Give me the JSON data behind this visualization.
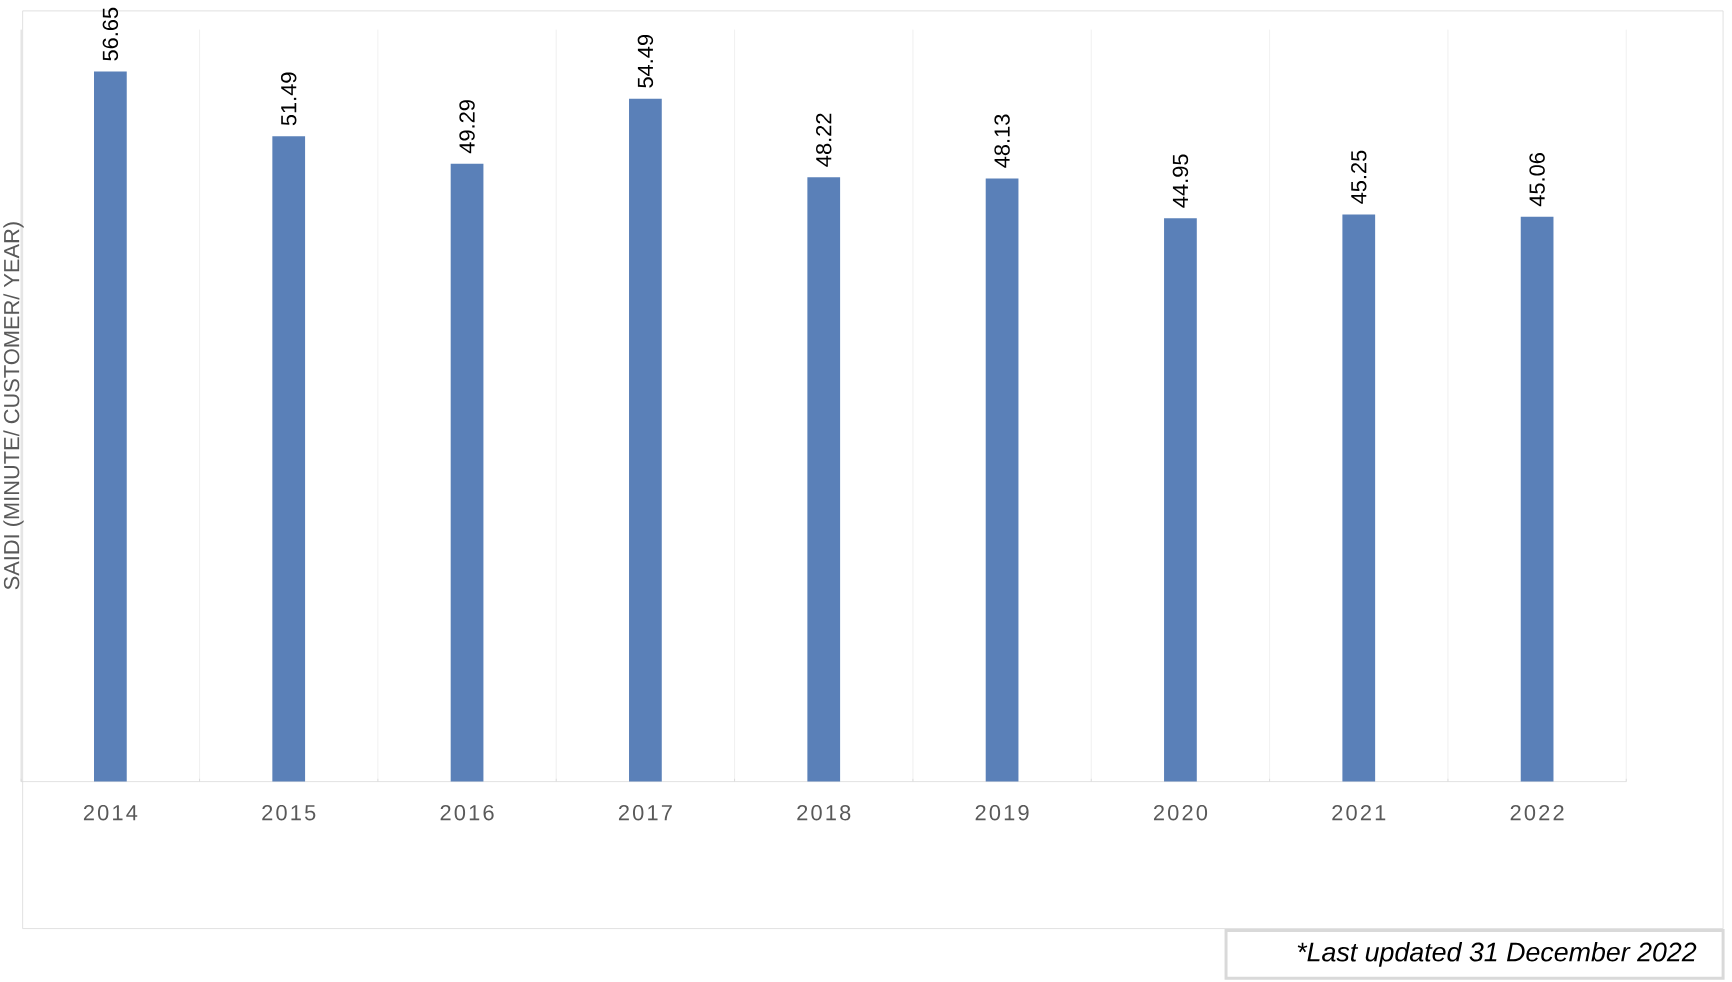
{
  "chart_data": {
    "type": "bar",
    "ylabel": "SAIDI (MINUTE/ CUSTOMER/ YEAR)",
    "categories": [
      "2014",
      "2015",
      "2016",
      "2017",
      "2018",
      "2019",
      "2020",
      "2021",
      "2022"
    ],
    "values": [
      56.65,
      51.49,
      49.29,
      54.49,
      48.22,
      48.13,
      44.95,
      45.25,
      45.06
    ],
    "color": "#5a80b8",
    "ylim": [
      0,
      60
    ],
    "tick_labels": "x",
    "grid": "x",
    "data_labels": true,
    "annotations": [
      "*Last updated 31 December 2022"
    ]
  }
}
